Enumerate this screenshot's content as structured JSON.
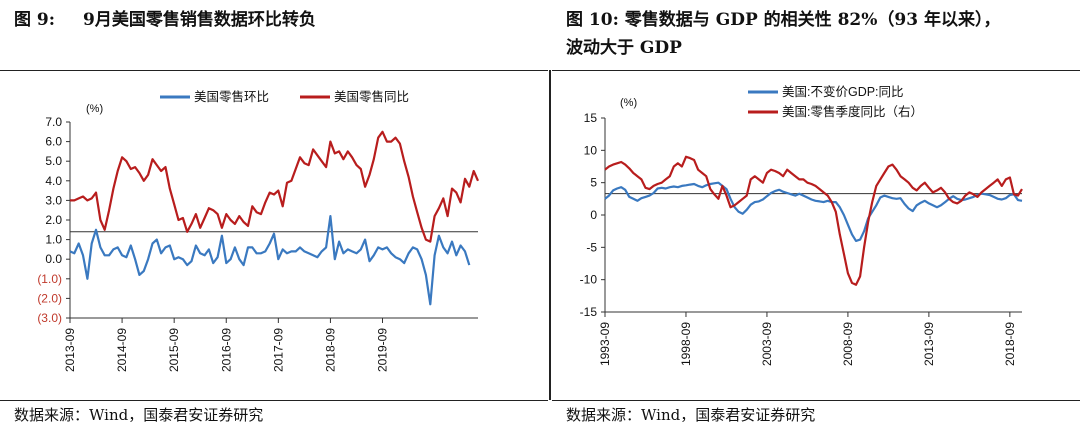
{
  "left": {
    "figure_label": "图 9:",
    "figure_title": "9月美国零售销售数据环比转负",
    "source": "数据来源：Wind，国泰君安证券研究"
  },
  "right": {
    "figure_label": "图 10:",
    "figure_title_line1": "零售数据与 GDP 的相关性 82%（93 年以来），",
    "figure_title_line2": "波动大于 GDP",
    "source": "数据来源：Wind，国泰君安证券研究"
  },
  "colors": {
    "blue": "#3A79C0",
    "red": "#B81D1D",
    "neg_label": "#C0392B",
    "ref": "#333333"
  },
  "chart_data": [
    {
      "type": "line",
      "title": "",
      "unit_label": "(%)",
      "ylim": [
        -3.0,
        7.0
      ],
      "y_ticks": [
        "7.0",
        "6.0",
        "5.0",
        "4.0",
        "3.0",
        "2.0",
        "1.0",
        "0.0",
        "(1.0)",
        "(2.0)",
        "(3.0)"
      ],
      "y_tick_values": [
        7,
        6,
        5,
        4,
        3,
        2,
        1,
        0,
        -1,
        -2,
        -3
      ],
      "x_ticks": [
        "2013-09",
        "2014-09",
        "2015-09",
        "2016-09",
        "2017-09",
        "2018-09",
        "2019-09"
      ],
      "x_tick_index": [
        0,
        12,
        24,
        36,
        48,
        60,
        72
      ],
      "reference_line": 1.4,
      "legend_position": "top",
      "series": [
        {
          "name": "美国零售环比",
          "color": "blue",
          "values": [
            0.4,
            0.3,
            0.8,
            0.2,
            -1.0,
            0.8,
            1.5,
            0.6,
            0.2,
            0.2,
            0.5,
            0.6,
            0.2,
            0.1,
            0.7,
            0.0,
            -0.8,
            -0.6,
            0.0,
            0.8,
            1.0,
            0.3,
            0.6,
            0.7,
            0.0,
            0.1,
            0.0,
            -0.3,
            -0.1,
            0.7,
            0.3,
            0.2,
            0.5,
            -0.2,
            0.1,
            1.2,
            -0.2,
            0.0,
            0.6,
            0.0,
            -0.3,
            0.6,
            0.6,
            0.3,
            0.3,
            0.4,
            0.8,
            1.3,
            0.0,
            0.5,
            0.3,
            0.4,
            0.4,
            0.6,
            0.4,
            0.3,
            0.2,
            0.1,
            0.4,
            0.6,
            2.2,
            0.0,
            0.9,
            0.3,
            0.5,
            0.4,
            0.3,
            0.5,
            1.0,
            -0.1,
            0.2,
            0.6,
            0.5,
            0.6,
            0.3,
            0.1,
            0.0,
            -0.2,
            0.3,
            0.6,
            0.5,
            0.0,
            -0.8,
            -2.3,
            0.2,
            1.2,
            0.6,
            0.3,
            0.9,
            0.2,
            0.7,
            0.4,
            -0.3
          ]
        },
        {
          "name": "美国零售同比",
          "color": "red",
          "values": [
            3.0,
            3.0,
            3.1,
            3.2,
            3.0,
            3.1,
            3.4,
            2.0,
            1.5,
            2.5,
            3.6,
            4.5,
            5.2,
            5.0,
            4.6,
            4.7,
            4.4,
            4.0,
            4.3,
            5.1,
            4.8,
            4.5,
            4.7,
            3.6,
            2.8,
            2.0,
            2.1,
            1.4,
            1.8,
            2.3,
            1.6,
            2.1,
            2.6,
            2.5,
            2.3,
            1.6,
            2.3,
            2.0,
            1.8,
            2.2,
            1.9,
            1.7,
            2.7,
            2.4,
            2.3,
            2.9,
            3.4,
            3.3,
            3.5,
            2.7,
            3.9,
            4.0,
            4.6,
            5.2,
            4.9,
            4.8,
            5.6,
            5.3,
            5.0,
            4.7,
            6.0,
            5.4,
            5.5,
            5.1,
            5.5,
            5.2,
            4.8,
            4.6,
            3.7,
            4.3,
            5.1,
            6.2,
            6.5,
            6.0,
            6.0,
            6.2,
            5.9,
            5.0,
            4.2,
            3.2,
            2.4,
            1.6,
            1.0,
            0.9,
            2.2,
            2.6,
            3.1,
            2.2,
            3.6,
            3.4,
            2.9,
            4.1,
            3.7,
            4.5,
            4.0
          ]
        }
      ]
    },
    {
      "type": "line",
      "title": "",
      "unit_label": "(%)",
      "ylim": [
        -15,
        15
      ],
      "y_ticks": [
        "15",
        "10",
        "5",
        "0",
        "-5",
        "-10",
        "-15"
      ],
      "y_tick_values": [
        15,
        10,
        5,
        0,
        -5,
        -10,
        -15
      ],
      "x_ticks": [
        "1993-09",
        "1998-09",
        "2003-09",
        "2008-09",
        "2013-09",
        "2018-09"
      ],
      "x_tick_index": [
        0,
        20,
        40,
        60,
        80,
        100
      ],
      "reference_line": 3.3,
      "legend_position": "top-left",
      "series": [
        {
          "name": "美国:不变价GDP:同比",
          "color": "blue",
          "values": [
            2.5,
            3.0,
            3.8,
            4.1,
            4.3,
            3.9,
            2.8,
            2.5,
            2.2,
            2.6,
            2.8,
            3.0,
            3.4,
            4.1,
            4.2,
            4.1,
            4.3,
            4.4,
            4.3,
            4.5,
            4.6,
            4.7,
            4.8,
            4.5,
            4.3,
            4.6,
            4.8,
            4.9,
            5.0,
            4.5,
            4.0,
            2.5,
            1.2,
            0.5,
            0.2,
            0.8,
            1.6,
            2.0,
            2.1,
            2.4,
            2.9,
            3.4,
            3.7,
            3.9,
            3.6,
            3.4,
            3.2,
            3.0,
            3.3,
            3.0,
            2.7,
            2.4,
            2.2,
            2.1,
            2.0,
            2.2,
            2.0,
            2.0,
            1.2,
            0.0,
            -1.5,
            -3.0,
            -4.0,
            -3.8,
            -2.5,
            -0.5,
            0.5,
            1.5,
            2.7,
            3.0,
            2.8,
            2.6,
            2.5,
            2.6,
            1.7,
            1.0,
            0.6,
            1.5,
            1.9,
            2.2,
            1.8,
            1.5,
            1.2,
            1.5,
            2.0,
            2.5,
            2.9,
            2.5,
            2.3,
            2.4,
            2.6,
            2.8,
            3.1,
            3.3,
            3.2,
            3.1,
            2.8,
            2.5,
            2.4,
            2.6,
            3.1,
            3.2,
            2.3,
            2.2
          ]
        },
        {
          "name": "美国:零售季度同比（右）",
          "color": "red",
          "values": [
            7.0,
            7.5,
            7.8,
            8.0,
            8.2,
            7.8,
            7.2,
            6.5,
            6.0,
            5.5,
            4.2,
            4.0,
            4.5,
            4.8,
            5.0,
            5.5,
            6.0,
            7.5,
            8.0,
            7.5,
            9.0,
            8.8,
            8.5,
            7.0,
            6.5,
            6.0,
            4.0,
            3.2,
            2.5,
            4.5,
            3.0,
            1.2,
            1.5,
            2.0,
            2.5,
            3.0,
            5.5,
            6.0,
            5.5,
            5.0,
            6.5,
            7.0,
            6.8,
            6.5,
            6.0,
            7.0,
            6.5,
            6.0,
            5.5,
            5.5,
            5.0,
            4.8,
            4.5,
            4.0,
            3.5,
            3.0,
            2.0,
            0.5,
            -3.0,
            -6.0,
            -9.0,
            -10.5,
            -10.8,
            -9.5,
            -5.0,
            -1.0,
            2.0,
            4.5,
            5.5,
            6.5,
            7.5,
            7.8,
            7.0,
            6.0,
            5.5,
            5.0,
            4.2,
            3.8,
            4.5,
            5.0,
            4.2,
            3.5,
            3.8,
            4.2,
            3.5,
            2.5,
            2.0,
            1.8,
            2.2,
            3.0,
            3.5,
            3.2,
            2.8,
            3.5,
            4.0,
            4.5,
            5.0,
            5.5,
            4.5,
            5.5,
            5.8,
            3.2,
            3.0,
            4.0
          ]
        }
      ]
    }
  ]
}
